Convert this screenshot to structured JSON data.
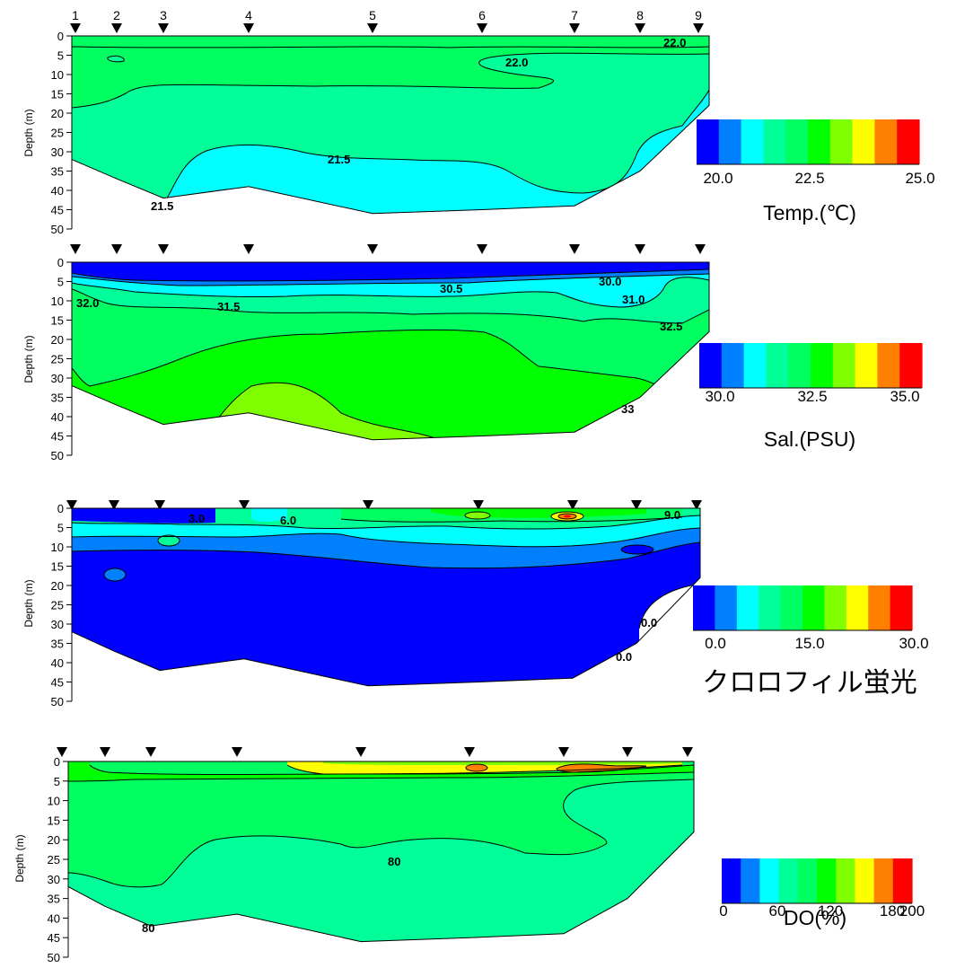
{
  "chart_data": [
    {
      "type": "heatmap",
      "ylabel": "Depth (m)",
      "depth_ticks": [
        "0",
        "5",
        "10",
        "15",
        "20",
        "25",
        "30",
        "35",
        "40",
        "45",
        "50"
      ],
      "ylim": [
        0,
        50
      ],
      "stations": [
        "1",
        "2",
        "3",
        "4",
        "5",
        "6",
        "7",
        "8",
        "9"
      ],
      "bottom_depth_m": [
        32,
        37,
        42,
        39,
        46,
        45,
        44,
        35,
        18
      ],
      "contour_labels": [
        "22.0",
        "22.0",
        "21.5",
        "21.5"
      ],
      "colorbar": {
        "title": "Temp.(℃)",
        "ticks": [
          "20.0",
          "22.5",
          "25.0"
        ],
        "range": [
          20.0,
          25.0
        ],
        "colors": [
          "#0000ff",
          "#0080ff",
          "#00ffff",
          "#00ff99",
          "#00ff60",
          "#00ff00",
          "#80ff00",
          "#ffff00",
          "#ff8000",
          "#ff0000"
        ]
      }
    },
    {
      "type": "heatmap",
      "ylabel": "Depth (m)",
      "depth_ticks": [
        "0",
        "5",
        "10",
        "15",
        "20",
        "25",
        "30",
        "35",
        "40",
        "45",
        "50"
      ],
      "ylim": [
        0,
        50
      ],
      "stations": [
        "1",
        "2",
        "3",
        "4",
        "5",
        "6",
        "7",
        "8",
        "9"
      ],
      "bottom_depth_m": [
        32,
        37,
        42,
        39,
        46,
        45,
        44,
        35,
        18
      ],
      "contour_labels": [
        "32.0",
        "31.5",
        "30.5",
        "30.0",
        "31.0",
        "32.5",
        "33"
      ],
      "colorbar": {
        "title": "Sal.(PSU)",
        "ticks": [
          "30.0",
          "32.5",
          "35.0"
        ],
        "range": [
          30.0,
          35.0
        ],
        "colors": [
          "#0000ff",
          "#0080ff",
          "#00ffff",
          "#00ff99",
          "#00ff60",
          "#00ff00",
          "#80ff00",
          "#ffff00",
          "#ff8000",
          "#ff0000"
        ]
      }
    },
    {
      "type": "heatmap",
      "ylabel": "Depth (m)",
      "depth_ticks": [
        "0",
        "5",
        "10",
        "15",
        "20",
        "25",
        "30",
        "35",
        "40",
        "45",
        "50"
      ],
      "ylim": [
        0,
        50
      ],
      "stations": [
        "1",
        "2",
        "3",
        "4",
        "5",
        "6",
        "7",
        "8",
        "9"
      ],
      "bottom_depth_m": [
        32,
        37,
        42,
        39,
        46,
        45,
        44,
        35,
        18
      ],
      "contour_labels": [
        "3.0",
        "6.0",
        "9.0",
        "0.0",
        "0.0"
      ],
      "colorbar": {
        "title": "クロロフィル蛍光",
        "ticks": [
          "0.0",
          "15.0",
          "30.0"
        ],
        "range": [
          0.0,
          30.0
        ],
        "colors": [
          "#0000ff",
          "#0080ff",
          "#00ffff",
          "#00ff99",
          "#00ff60",
          "#00ff00",
          "#80ff00",
          "#ffff00",
          "#ff8000",
          "#ff0000"
        ]
      }
    },
    {
      "type": "heatmap",
      "ylabel": "Depth (m)",
      "depth_ticks": [
        "0",
        "5",
        "10",
        "15",
        "20",
        "25",
        "30",
        "35",
        "40",
        "45",
        "50"
      ],
      "ylim": [
        0,
        50
      ],
      "stations": [
        "1",
        "2",
        "3",
        "4",
        "5",
        "6",
        "7",
        "8",
        "9"
      ],
      "bottom_depth_m": [
        32,
        37,
        42,
        39,
        46,
        45,
        44,
        35,
        18
      ],
      "contour_labels": [
        "80",
        "80"
      ],
      "colorbar": {
        "title": "DO(%)",
        "ticks": [
          "0",
          "60",
          "120",
          "180",
          "200"
        ],
        "range": [
          0,
          200
        ],
        "colors": [
          "#0000ff",
          "#0080ff",
          "#00ffff",
          "#00ff99",
          "#00ff60",
          "#00ff00",
          "#80ff00",
          "#ffff00",
          "#ff8000",
          "#ff0000"
        ]
      }
    }
  ]
}
